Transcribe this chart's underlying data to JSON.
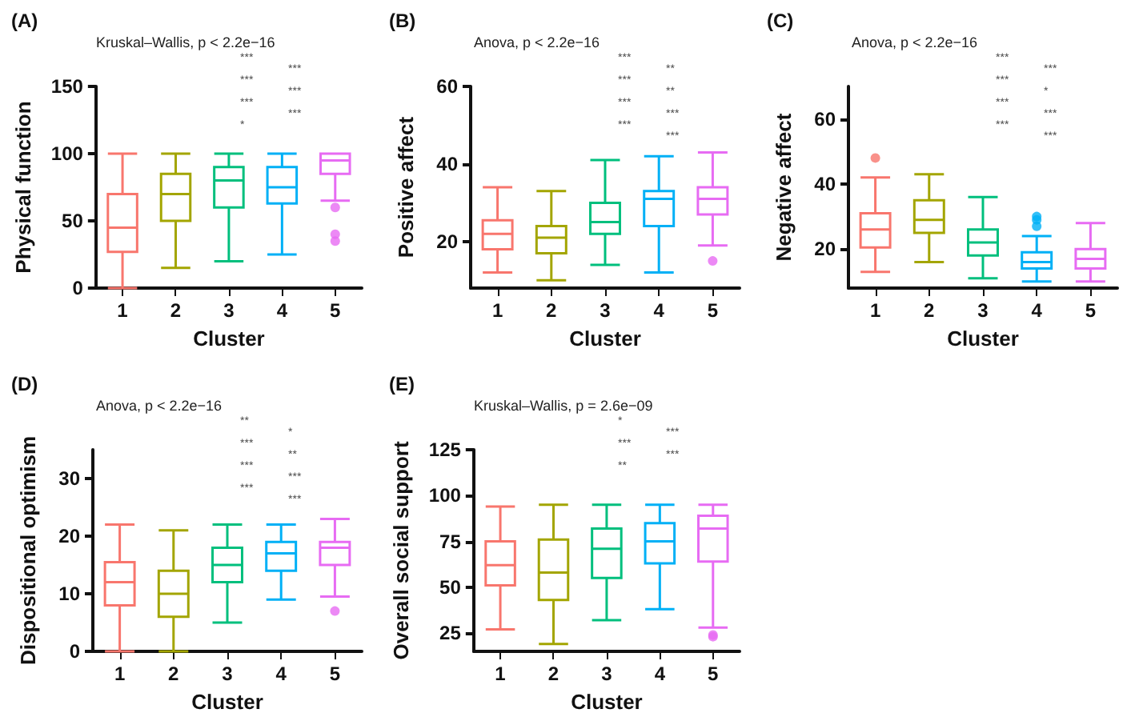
{
  "chart_data": [
    {
      "type": "box",
      "title": "(A)",
      "xlabel": "Cluster",
      "ylabel": "Physical function",
      "categories": [
        "1",
        "2",
        "3",
        "4",
        "5"
      ],
      "colors": [
        "#f8766d",
        "#a3a500",
        "#00bf7d",
        "#00b0f6",
        "#e76bf3"
      ],
      "ylim": [
        0,
        150
      ],
      "yticks": [
        0,
        50,
        100,
        150
      ],
      "grid": false,
      "boxes": [
        {
          "low": 0,
          "q1": 27,
          "median": 45,
          "q3": 70,
          "high": 100
        },
        {
          "low": 15,
          "q1": 50,
          "median": 70,
          "q3": 85,
          "high": 100
        },
        {
          "low": 20,
          "q1": 60,
          "median": 80,
          "q3": 90,
          "high": 100
        },
        {
          "low": 25,
          "q1": 63,
          "median": 75,
          "q3": 90,
          "high": 100
        },
        {
          "low": 65,
          "q1": 85,
          "median": 95,
          "q3": 100,
          "high": 100,
          "outliers": [
            60,
            40,
            35
          ]
        }
      ],
      "annotations": [
        "Kruskal–Wallis, p < 2.2e−16",
        "***",
        "***",
        "***",
        "***",
        "***",
        "***",
        "*"
      ]
    },
    {
      "type": "box",
      "title": "(B)",
      "xlabel": "Cluster",
      "ylabel": "Positive affect",
      "categories": [
        "1",
        "2",
        "3",
        "4",
        "5"
      ],
      "colors": [
        "#f8766d",
        "#a3a500",
        "#00bf7d",
        "#00b0f6",
        "#e76bf3"
      ],
      "ylim": [
        8,
        60
      ],
      "yticks": [
        20,
        40,
        60
      ],
      "grid": false,
      "boxes": [
        {
          "low": 12,
          "q1": 18,
          "median": 22,
          "q3": 25.5,
          "high": 34
        },
        {
          "low": 10,
          "q1": 17,
          "median": 21,
          "q3": 24,
          "high": 33
        },
        {
          "low": 14,
          "q1": 22,
          "median": 25,
          "q3": 30,
          "high": 41
        },
        {
          "low": 12,
          "q1": 24,
          "median": 31,
          "q3": 33,
          "high": 42
        },
        {
          "low": 19,
          "q1": 27,
          "median": 31,
          "q3": 34,
          "high": 43,
          "outliers": [
            15
          ]
        }
      ],
      "annotations": [
        "Anova, p < 2.2e−16",
        "***",
        "**",
        "***",
        "**",
        "***",
        "***",
        "***",
        "***"
      ]
    },
    {
      "type": "box",
      "title": "(C)",
      "xlabel": "Cluster",
      "ylabel": "Negative affect",
      "categories": [
        "1",
        "2",
        "3",
        "4",
        "5"
      ],
      "colors": [
        "#f8766d",
        "#a3a500",
        "#00bf7d",
        "#00b0f6",
        "#e76bf3"
      ],
      "ylim": [
        8,
        70
      ],
      "yticks": [
        20,
        40,
        60
      ],
      "grid": false,
      "boxes": [
        {
          "low": 13,
          "q1": 20.5,
          "median": 26,
          "q3": 31,
          "high": 42,
          "outliers": [
            48
          ]
        },
        {
          "low": 16,
          "q1": 25,
          "median": 29,
          "q3": 35,
          "high": 43
        },
        {
          "low": 11,
          "q1": 18,
          "median": 22,
          "q3": 26,
          "high": 36
        },
        {
          "low": 10,
          "q1": 14,
          "median": 16,
          "q3": 19,
          "high": 24,
          "outliers": [
            27,
            29,
            30
          ]
        },
        {
          "low": 10,
          "q1": 14,
          "median": 17,
          "q3": 20,
          "high": 28
        }
      ],
      "annotations": [
        "Anova, p < 2.2e−16",
        "***",
        "***",
        "***",
        "*",
        "***",
        "***",
        "***",
        "***"
      ]
    },
    {
      "type": "box",
      "title": "(D)",
      "xlabel": "Cluster",
      "ylabel": "Dispositional optimism",
      "categories": [
        "1",
        "2",
        "3",
        "4",
        "5"
      ],
      "colors": [
        "#f8766d",
        "#a3a500",
        "#00bf7d",
        "#00b0f6",
        "#e76bf3"
      ],
      "ylim": [
        0,
        35
      ],
      "yticks": [
        0,
        10,
        20,
        30
      ],
      "grid": false,
      "boxes": [
        {
          "low": 0,
          "q1": 8,
          "median": 12,
          "q3": 15.5,
          "high": 22
        },
        {
          "low": 0,
          "q1": 6,
          "median": 10,
          "q3": 14,
          "high": 21
        },
        {
          "low": 5,
          "q1": 12,
          "median": 15,
          "q3": 18,
          "high": 22
        },
        {
          "low": 9,
          "q1": 14,
          "median": 17,
          "q3": 19,
          "high": 22
        },
        {
          "low": 9.5,
          "q1": 15,
          "median": 18,
          "q3": 19,
          "high": 23,
          "outliers": [
            7
          ]
        }
      ],
      "annotations": [
        "Anova, p < 2.2e−16",
        "**",
        "*",
        "***",
        "**",
        "***",
        "***",
        "***",
        "***"
      ]
    },
    {
      "type": "box",
      "title": "(E)",
      "xlabel": "Cluster",
      "ylabel": "Overall social support",
      "categories": [
        "1",
        "2",
        "3",
        "4",
        "5"
      ],
      "colors": [
        "#f8766d",
        "#a3a500",
        "#00bf7d",
        "#00b0f6",
        "#e76bf3"
      ],
      "ylim": [
        15,
        125
      ],
      "yticks": [
        25,
        50,
        75,
        100,
        125
      ],
      "grid": false,
      "boxes": [
        {
          "low": 27,
          "q1": 51,
          "median": 62,
          "q3": 75,
          "high": 94
        },
        {
          "low": 19,
          "q1": 43,
          "median": 58,
          "q3": 76,
          "high": 95
        },
        {
          "low": 32,
          "q1": 55,
          "median": 71,
          "q3": 82,
          "high": 95
        },
        {
          "low": 38,
          "q1": 63,
          "median": 75,
          "q3": 85,
          "high": 95
        },
        {
          "low": 28,
          "q1": 64,
          "median": 82,
          "q3": 89,
          "high": 95,
          "outliers": [
            23,
            24
          ]
        }
      ],
      "annotations": [
        "Kruskal–Wallis, p = 2.6e−09",
        "*",
        "***",
        "***",
        "***",
        "**"
      ]
    }
  ]
}
